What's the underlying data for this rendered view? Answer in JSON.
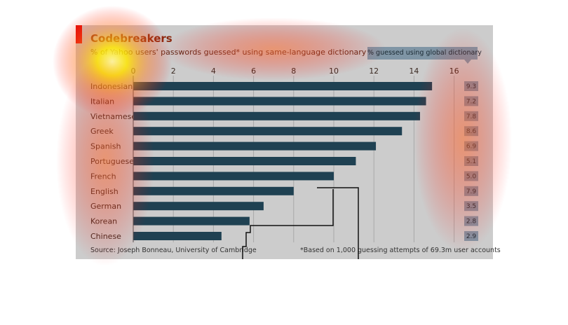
{
  "header": {
    "title": "Codebreakers",
    "subtitle": "% of Yahoo users' passwords guessed* using same-language dictionary",
    "legend_label": "% guessed using global dictionary"
  },
  "footer": {
    "source": "Source: Joseph Bonneau, University of Cambridge",
    "footnote": "*Based on 1,000 guessing attempts of 69.3m user accounts"
  },
  "colors": {
    "bar": "#1f4152",
    "background": "#cccccc",
    "legend_box": "#7f95a5",
    "accent": "#e3120b"
  },
  "chart_data": {
    "type": "bar",
    "orientation": "horizontal",
    "title": "Codebreakers",
    "subtitle": "% of Yahoo users' passwords guessed* using same-language dictionary",
    "categories": [
      "Indonesian",
      "Italian",
      "Vietnamese",
      "Greek",
      "Spanish",
      "Portuguese",
      "French",
      "English",
      "German",
      "Korean",
      "Chinese"
    ],
    "values": [
      14.9,
      14.6,
      14.3,
      13.4,
      12.1,
      11.1,
      10.0,
      8.0,
      6.5,
      5.8,
      4.4
    ],
    "global_dictionary": [
      "9.3",
      "7.2",
      "7.8",
      "8.6",
      "6.9",
      "5.1",
      "5.0",
      "7.9",
      "3.5",
      "2.8",
      "2.9"
    ],
    "ticks": [
      "0",
      "2",
      "4",
      "6",
      "8",
      "10",
      "12",
      "14",
      "16"
    ],
    "xlim": [
      0,
      16
    ],
    "grid": true,
    "legend_placement": "top-right"
  }
}
